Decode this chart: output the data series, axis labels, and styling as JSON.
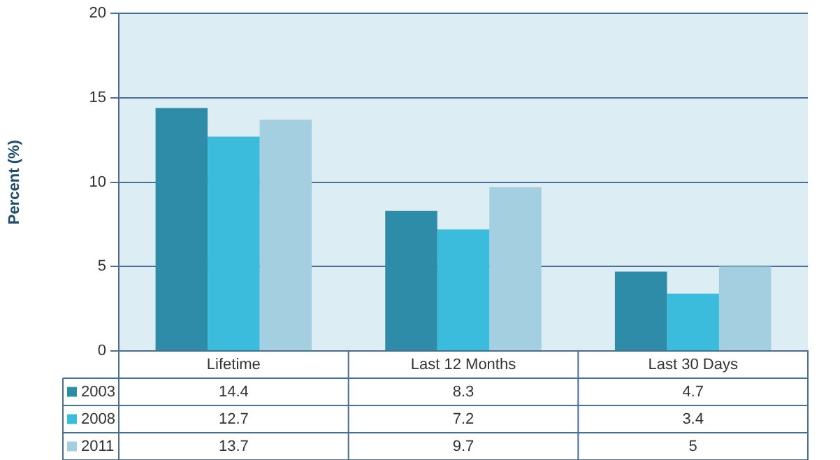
{
  "chart_data": {
    "type": "bar",
    "ylabel": "Percent (%)",
    "categories": [
      "Lifetime",
      "Last 12 Months",
      "Last 30 Days"
    ],
    "series": [
      {
        "name": "2003",
        "color": "#2e8ca8",
        "values": [
          14.4,
          8.3,
          4.7
        ]
      },
      {
        "name": "2008",
        "color": "#3bbcdc",
        "values": [
          12.7,
          7.2,
          3.4
        ]
      },
      {
        "name": "2011",
        "color": "#a3cfe0",
        "values": [
          13.7,
          9.7,
          5
        ]
      }
    ],
    "ylim": [
      0,
      20
    ],
    "yticks": [
      0,
      5,
      10,
      15,
      20
    ],
    "grid": "y",
    "legend": "bottom left",
    "data_labels": true
  }
}
